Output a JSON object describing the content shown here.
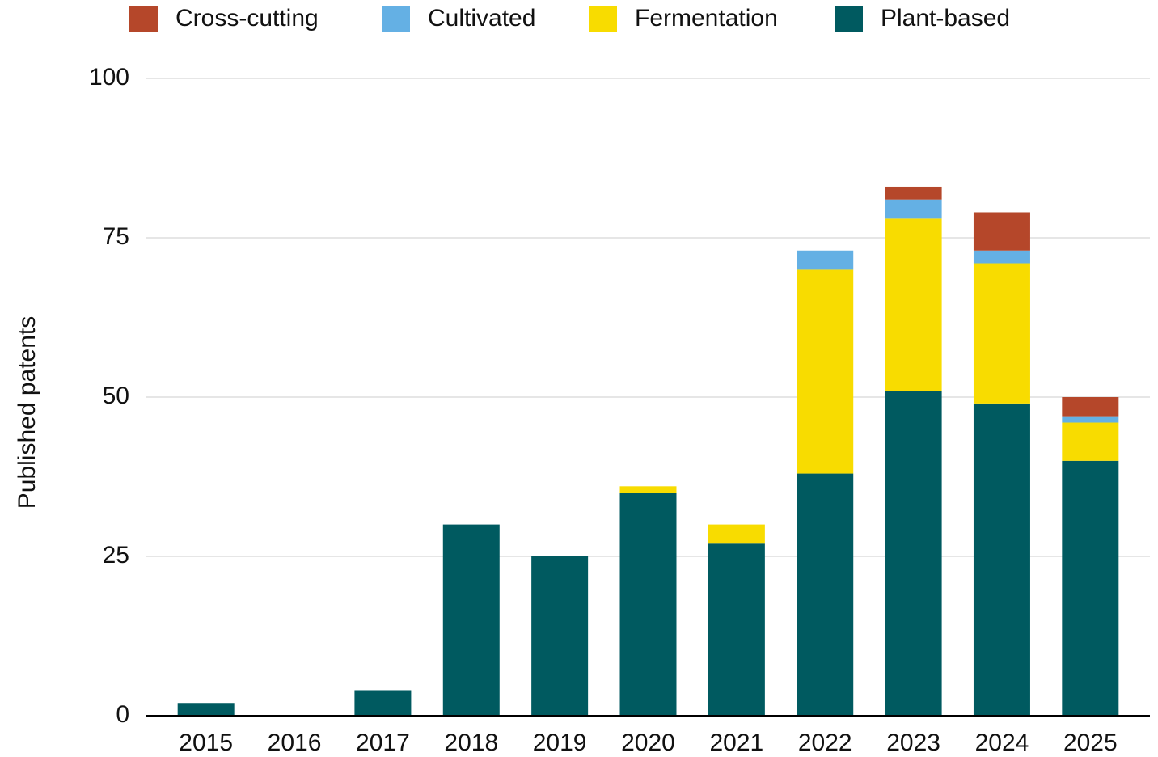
{
  "chart_data": {
    "type": "stacked_bar",
    "y_label": "Published patents",
    "categories": [
      "2015",
      "2016",
      "2017",
      "2018",
      "2019",
      "2020",
      "2021",
      "2022",
      "2023",
      "2024",
      "2025"
    ],
    "series": [
      {
        "name": "Cross-cutting",
        "color": "#b5472a",
        "values": [
          0,
          0,
          0,
          0,
          0,
          0,
          0,
          0,
          2,
          6,
          3
        ]
      },
      {
        "name": "Cultivated",
        "color": "#64b0e4",
        "values": [
          0,
          0,
          0,
          0,
          0,
          0,
          0,
          3,
          3,
          2,
          1
        ]
      },
      {
        "name": "Fermentation",
        "color": "#f8dc00",
        "values": [
          0,
          0,
          0,
          0,
          0,
          1,
          3,
          32,
          27,
          22,
          6
        ]
      },
      {
        "name": "Plant-based",
        "color": "#005a60",
        "values": [
          2,
          0,
          4,
          30,
          25,
          35,
          27,
          38,
          51,
          49,
          40
        ]
      }
    ],
    "ylim": [
      0,
      100
    ],
    "yticks": [
      0,
      25,
      50,
      75,
      100
    ],
    "grid": true,
    "legend": "top"
  }
}
